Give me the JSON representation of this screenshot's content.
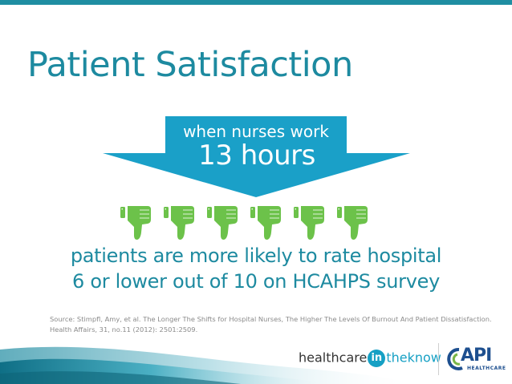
{
  "title": "Patient Satisfaction",
  "arrow": {
    "line1": "when nurses work",
    "line2": "13 hours",
    "color": "#1aa0c8"
  },
  "thumbs": {
    "icon": "thumbs-down-icon",
    "count": 6,
    "color": "#6cc24a"
  },
  "subtitle": {
    "line1": "patients are more likely to rate hospital",
    "line2": "6 or lower out of 10 on HCAHPS survey"
  },
  "source": {
    "line1": "Source: Stimpfl, Amy, et al. The Longer The Shifts for Hospital Nurses, The Higher The Levels Of Burnout And Patient Dissatisfaction.",
    "line2": "Health Affairs, 31, no.11 (2012): 2501:2509."
  },
  "footer": {
    "healthcare": "healthcare",
    "in": "in",
    "theknow": "theknow",
    "api": "API",
    "api_sub": "HEALTHCARE"
  },
  "colors": {
    "accent": "#1d8aa0",
    "brand_blue": "#1d4f8f"
  }
}
